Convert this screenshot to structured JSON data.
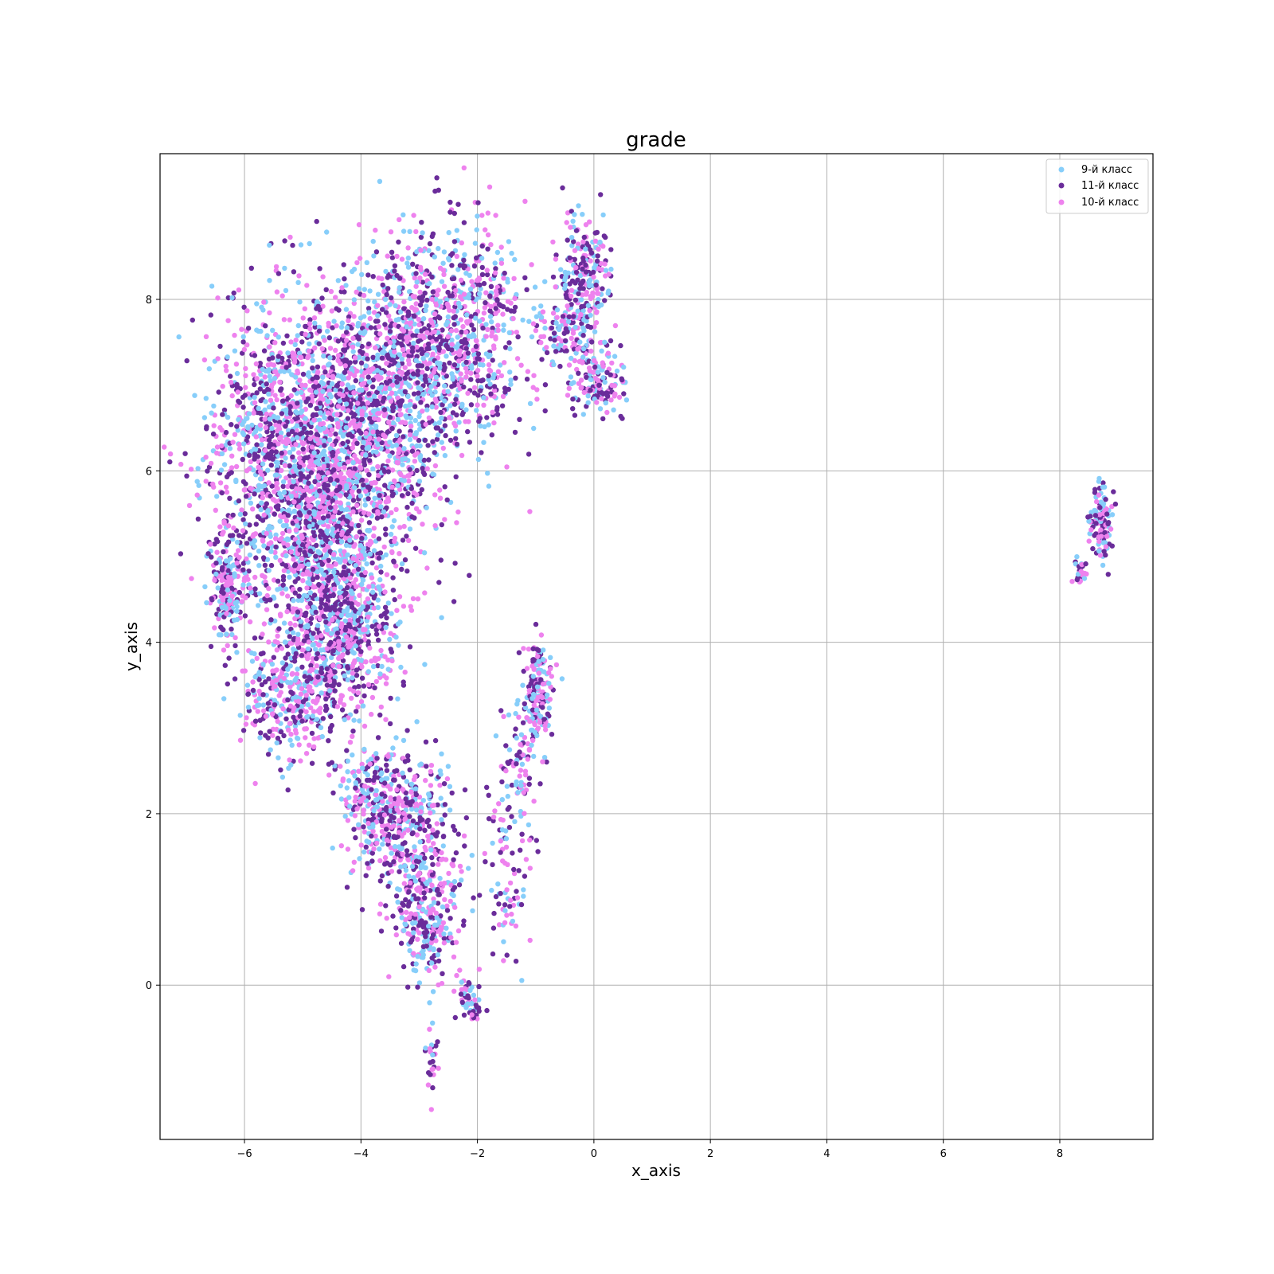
{
  "chart_data": {
    "type": "scatter",
    "title": "grade",
    "xlabel": "x_axis",
    "ylabel": "y_axis",
    "xlim": [
      -7.45,
      9.6
    ],
    "ylim": [
      -1.8,
      9.7
    ],
    "xticks": [
      -6,
      -4,
      -2,
      0,
      2,
      4,
      6,
      8
    ],
    "yticks": [
      0,
      2,
      4,
      6,
      8
    ],
    "xtick_labels": [
      "−6",
      "−4",
      "−2",
      "0",
      "2",
      "4",
      "6",
      "8"
    ],
    "ytick_labels": [
      "0",
      "2",
      "4",
      "6",
      "8"
    ],
    "grid": true,
    "legend_position": "top-right",
    "series": [
      {
        "name": "9-й класс",
        "color": "#87cefa"
      },
      {
        "name": "11-й класс",
        "color": "#6a2c9a"
      },
      {
        "name": "10-й класс",
        "color": "#ee82ee"
      }
    ],
    "clusters": [
      {
        "cx": -5.2,
        "cy": 6.3,
        "sx": 0.75,
        "sy": 0.8,
        "n": 1200
      },
      {
        "cx": -3.9,
        "cy": 6.6,
        "sx": 0.75,
        "sy": 0.8,
        "n": 1200
      },
      {
        "cx": -2.5,
        "cy": 7.6,
        "sx": 0.65,
        "sy": 0.65,
        "n": 900
      },
      {
        "cx": -4.6,
        "cy": 5.0,
        "sx": 0.6,
        "sy": 0.6,
        "n": 700
      },
      {
        "cx": -4.3,
        "cy": 4.0,
        "sx": 0.45,
        "sy": 0.5,
        "n": 500
      },
      {
        "cx": -5.2,
        "cy": 3.4,
        "sx": 0.45,
        "sy": 0.4,
        "n": 350
      },
      {
        "cx": -6.3,
        "cy": 4.7,
        "sx": 0.15,
        "sy": 0.35,
        "n": 200
      },
      {
        "cx": -3.8,
        "cy": 2.1,
        "sx": 0.3,
        "sy": 0.35,
        "n": 260
      },
      {
        "cx": -3.1,
        "cy": 1.8,
        "sx": 0.35,
        "sy": 0.4,
        "n": 320
      },
      {
        "cx": -2.9,
        "cy": 0.8,
        "sx": 0.28,
        "sy": 0.35,
        "n": 260
      },
      {
        "cx": -2.1,
        "cy": -0.2,
        "sx": 0.1,
        "sy": 0.12,
        "n": 50
      },
      {
        "cx": -2.8,
        "cy": -0.9,
        "sx": 0.06,
        "sy": 0.2,
        "n": 25
      },
      {
        "cx": -0.2,
        "cy": 8.3,
        "sx": 0.25,
        "sy": 0.35,
        "n": 200
      },
      {
        "cx": -0.4,
        "cy": 7.6,
        "sx": 0.3,
        "sy": 0.3,
        "n": 150
      },
      {
        "cx": 0.1,
        "cy": 7.0,
        "sx": 0.22,
        "sy": 0.18,
        "n": 130
      },
      {
        "cx": -0.95,
        "cy": 3.4,
        "sx": 0.12,
        "sy": 0.3,
        "n": 180
      },
      {
        "cx": -1.3,
        "cy": 2.5,
        "sx": 0.18,
        "sy": 0.4,
        "n": 90
      },
      {
        "cx": -1.5,
        "cy": 1.2,
        "sx": 0.2,
        "sy": 0.5,
        "n": 80
      },
      {
        "cx": 8.7,
        "cy": 5.4,
        "sx": 0.1,
        "sy": 0.22,
        "n": 120
      },
      {
        "cx": 8.35,
        "cy": 4.8,
        "sx": 0.06,
        "sy": 0.12,
        "n": 25
      }
    ]
  }
}
